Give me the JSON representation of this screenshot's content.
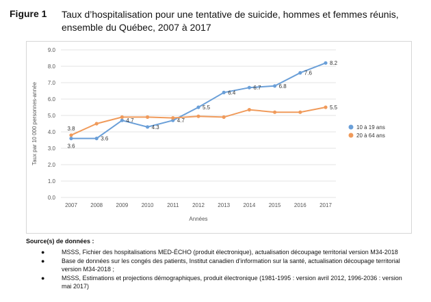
{
  "figure": {
    "number": "Figure 1",
    "title": "Taux d’hospitalisation pour une tentative de suicide, hommes et femmes réunis, ensemble du Québec, 2007 à 2017"
  },
  "chart_data": {
    "type": "line",
    "x": [
      "2007",
      "2008",
      "2009",
      "2010",
      "2011",
      "2012",
      "2013",
      "2014",
      "2015",
      "2016",
      "2017"
    ],
    "xlabel": "Années",
    "ylabel": "Taux par 10 000 personnes-année",
    "ylim": [
      0,
      9
    ],
    "yticks": [
      "0.0",
      "1.0",
      "2.0",
      "3.0",
      "4.0",
      "5.0",
      "6.0",
      "7.0",
      "8.0",
      "9.0"
    ],
    "grid": true,
    "legend_position": "right",
    "series": [
      {
        "name": "10 à 19 ans",
        "color": "#6a9fd8",
        "values": [
          3.6,
          3.6,
          4.7,
          4.3,
          4.7,
          5.5,
          6.4,
          6.7,
          6.8,
          7.6,
          8.2
        ],
        "labels": [
          "3.6",
          "3.6",
          "4.7",
          "4.3",
          "4.7",
          "5.5",
          "6.4",
          "6.7",
          "6.8",
          "7.6",
          "8.2"
        ]
      },
      {
        "name": "20 à 64 ans",
        "color": "#f09a5a",
        "values": [
          3.8,
          4.5,
          4.9,
          4.9,
          4.85,
          4.95,
          4.9,
          5.35,
          5.2,
          5.2,
          5.5
        ],
        "labels": [
          "3.8",
          "",
          "",
          "",
          "",
          "",
          "",
          "",
          "",
          "",
          "5.5"
        ]
      }
    ]
  },
  "sources": {
    "heading": "Source(s) de données :",
    "bullet": "●",
    "items": [
      "MSSS, Fichier des hospitalisations MED-ÉCHO (produit électronique), actualisation découpage territorial version M34-2018",
      "Base de données sur les congés des patients, Institut canadien d’information sur la santé, actualisation découpage territorial version M34-2018 ;",
      "MSSS, Estimations et projections démographiques, produit électronique (1981-1995 : version avril 2012, 1996-2036 : version mai 2017)"
    ]
  }
}
